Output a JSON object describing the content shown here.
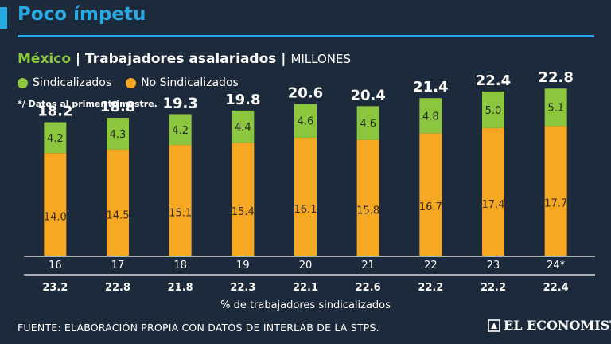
{
  "title": "Poco ímpetu",
  "subtitle": {
    "country": "México",
    "separator": " | ",
    "metric": "Trabajadores asalariados",
    "units": "MILLONES"
  },
  "legend": [
    {
      "label": "Sindicalizados",
      "color": "#8cc63f"
    },
    {
      "label": "No Sindicalizados",
      "color": "#f7a823"
    }
  ],
  "note": "*/ Datos al primer trimestre.",
  "source": "FUENTE:  ELABORACIÓN PROPIA CON DATOS DE INTERLAB DE LA STPS.",
  "logo": "EL ECONOMISTA",
  "chart_data": {
    "type": "bar",
    "stacked": true,
    "categories": [
      "16",
      "17",
      "18",
      "19",
      "20",
      "21",
      "22",
      "23",
      "24*"
    ],
    "series": [
      {
        "name": "No Sindicalizados",
        "color": "#f7a823",
        "values": [
          14.0,
          14.5,
          15.1,
          15.4,
          16.1,
          15.8,
          16.7,
          17.4,
          17.7
        ],
        "labels": [
          "14.0",
          "14.5",
          "15.1",
          "15.4",
          "16.1",
          "15.8",
          "16.7",
          "17.4",
          "17.7"
        ]
      },
      {
        "name": "Sindicalizados",
        "color": "#8cc63f",
        "values": [
          4.2,
          4.3,
          4.2,
          4.4,
          4.6,
          4.6,
          4.8,
          5.0,
          5.1
        ],
        "labels": [
          "4.2",
          "4.3",
          "4.2",
          "4.4",
          "4.6",
          "4.6",
          "4.8",
          "5.0",
          "5.1"
        ]
      }
    ],
    "totals": [
      "18.2",
      "18.8",
      "19.3",
      "19.8",
      "20.6",
      "20.4",
      "21.4",
      "22.4",
      "22.8"
    ],
    "union_share": [
      "23.2",
      "22.8",
      "21.8",
      "22.3",
      "22.1",
      "22.6",
      "22.2",
      "22.2",
      "22.4"
    ],
    "union_share_label": "% de trabajadores sindicalizados",
    "ylim": [
      0,
      25
    ]
  }
}
